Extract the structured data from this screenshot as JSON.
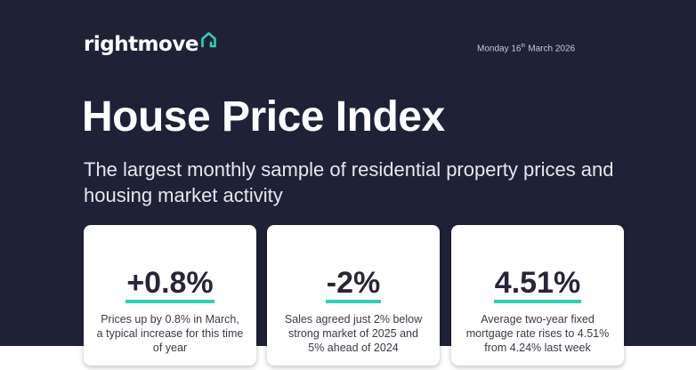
{
  "brand": {
    "name": "rightmove",
    "icon": "house-icon",
    "accent": "#2ed1b3"
  },
  "header": {
    "date_prefix": "Monday 16",
    "date_suffix": "th",
    "date_rest": " March 2026"
  },
  "hero": {
    "title": "House Price Index",
    "subtitle": "The largest monthly sample of residential property prices and housing market activity"
  },
  "stats": [
    {
      "value": "+0.8%",
      "description": "Prices up by 0.8% in March, a typical increase for this time of year"
    },
    {
      "value": "-2%",
      "description": "Sales agreed just 2% below strong market of 2025 and 5% ahead of 2024"
    },
    {
      "value": "4.51%",
      "description": "Average two-year fixed mortgage rate rises to 4.51% from 4.24% last week"
    }
  ]
}
